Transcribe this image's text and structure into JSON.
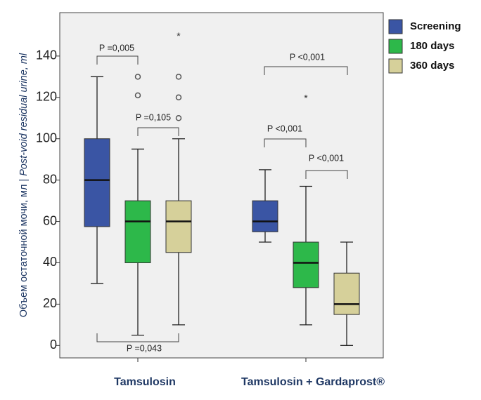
{
  "chart_data": {
    "type": "box",
    "ylabel": [
      "Объем остаточной мочи, мл | ",
      "Post-void residual urine, ml"
    ],
    "categories": [
      "Tamsulosin",
      "Tamsulosin + Gardaprost®"
    ],
    "ylim": [
      -6,
      161
    ],
    "yticks": [
      0,
      20,
      40,
      60,
      80,
      100,
      120,
      140
    ],
    "series": [
      {
        "name": "Screening",
        "color": "#3a55a4",
        "min": [
          30,
          50
        ],
        "q1": [
          57.5,
          55
        ],
        "median": [
          80,
          60
        ],
        "q3": [
          100,
          70
        ],
        "max": [
          130,
          85
        ],
        "outliers": [
          [],
          []
        ],
        "extremes": [
          [],
          []
        ]
      },
      {
        "name": "180 days",
        "color": "#2db84a",
        "min": [
          5,
          10
        ],
        "q1": [
          40,
          28
        ],
        "median": [
          60,
          40
        ],
        "q3": [
          70,
          50
        ],
        "max": [
          95,
          77
        ],
        "outliers": [
          [
            121,
            130
          ],
          []
        ],
        "extremes": [
          [],
          [
            120
          ]
        ]
      },
      {
        "name": "360 days",
        "color": "#d6d09a",
        "min": [
          10,
          0
        ],
        "q1": [
          45,
          15
        ],
        "median": [
          60,
          20
        ],
        "q3": [
          70,
          35
        ],
        "max": [
          100,
          50
        ],
        "outliers": [
          [
            110,
            120,
            130
          ],
          []
        ],
        "extremes": [
          [
            150
          ],
          []
        ]
      }
    ],
    "annotations": [
      "P =0,005",
      "P =0,105",
      "P =0,043",
      "P <0,001",
      "P <0,001",
      "P <0,001"
    ]
  }
}
